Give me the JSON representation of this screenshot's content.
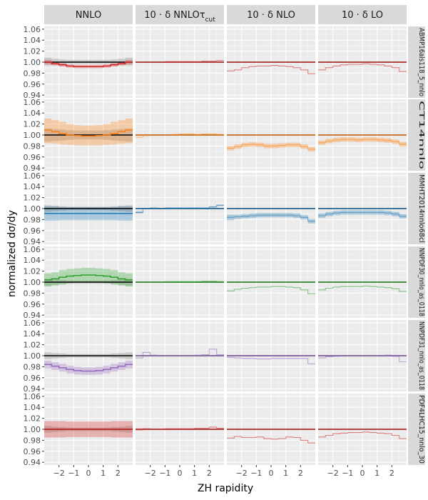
{
  "chart_data": {
    "type": "line",
    "xlabel": "ZH rapidity",
    "ylabel": "normalized dσ/dy",
    "xlim": [
      -3.0,
      3.0
    ],
    "ylim": [
      0.935,
      1.065
    ],
    "xticks": [
      -2,
      -1,
      0,
      1,
      2
    ],
    "xtick_labels": [
      "−2",
      "−1",
      "0",
      "1",
      "2"
    ],
    "yticks": [
      0.94,
      0.96,
      0.98,
      1.0,
      1.02,
      1.04,
      1.06
    ],
    "ytick_labels": [
      "0.94",
      "0.96",
      "0.98",
      "1.00",
      "1.02",
      "1.04",
      "1.06"
    ],
    "grid": true,
    "reference_line": 1.0,
    "columns": [
      {
        "id": "nnlo",
        "label_text": "NNLO",
        "label_sub": ""
      },
      {
        "id": "dnnlo",
        "label_text": "10 · δ NNLOτ",
        "label_sub": "cut"
      },
      {
        "id": "dnlo",
        "label_text": "10 · δ NLO",
        "label_sub": ""
      },
      {
        "id": "dlo",
        "label_text": "10 · δ LO",
        "label_sub": ""
      }
    ],
    "x_bins": [
      -2.75,
      -2.25,
      -1.75,
      -1.25,
      -0.75,
      -0.25,
      0.25,
      0.75,
      1.25,
      1.75,
      2.25,
      2.75
    ],
    "rows": [
      {
        "label": "ABMP16als118_5_nnlo",
        "color": "#d62728",
        "nnlo": {
          "central": [
            1.0,
            0.997,
            0.995,
            0.993,
            0.992,
            0.992,
            0.992,
            0.992,
            0.993,
            0.995,
            0.997,
            1.0
          ],
          "band_low": [
            0.996,
            0.994,
            0.992,
            0.99,
            0.989,
            0.989,
            0.989,
            0.989,
            0.99,
            0.992,
            0.994,
            0.996
          ],
          "band_high": [
            1.004,
            1.001,
            0.998,
            0.996,
            0.995,
            0.995,
            0.995,
            0.995,
            0.996,
            0.998,
            1.001,
            1.004
          ],
          "scale_low": [
            0.994,
            0.995,
            0.996,
            0.997,
            0.997,
            0.997,
            0.997,
            0.997,
            0.997,
            0.996,
            0.995,
            0.994
          ],
          "scale_high": [
            1.008,
            1.006,
            1.005,
            1.004,
            1.004,
            1.004,
            1.004,
            1.004,
            1.004,
            1.005,
            1.006,
            1.008
          ]
        },
        "dnnlo": {
          "central": [
            1.0,
            1.0,
            1.0,
            1.0,
            1.001,
            1.001,
            1.001,
            1.001,
            1.001,
            1.002,
            1.002,
            1.003
          ]
        },
        "dnlo": {
          "central": [
            0.984,
            0.986,
            0.99,
            0.992,
            0.993,
            0.993,
            0.994,
            0.993,
            0.992,
            0.99,
            0.986,
            0.979
          ]
        },
        "dlo": {
          "central": [
            0.986,
            0.99,
            0.993,
            0.995,
            0.996,
            0.996,
            0.997,
            0.996,
            0.995,
            0.993,
            0.99,
            0.983
          ]
        }
      },
      {
        "label": "CT14nnlo",
        "color": "#ff7f0e",
        "nnlo": {
          "central": [
            1.009,
            1.006,
            1.003,
            1.0,
            0.999,
            0.998,
            0.998,
            0.999,
            1.0,
            1.003,
            1.006,
            1.009
          ],
          "band_low": [
            0.985,
            0.984,
            0.983,
            0.982,
            0.981,
            0.981,
            0.981,
            0.981,
            0.982,
            0.983,
            0.984,
            0.985
          ],
          "band_high": [
            1.03,
            1.027,
            1.024,
            1.02,
            1.018,
            1.017,
            1.017,
            1.018,
            1.02,
            1.024,
            1.027,
            1.03
          ],
          "scale_low": [
            0.988,
            0.989,
            0.99,
            0.991,
            0.992,
            0.992,
            0.992,
            0.992,
            0.991,
            0.99,
            0.989,
            0.988
          ],
          "scale_high": [
            1.012,
            1.011,
            1.01,
            1.009,
            1.008,
            1.008,
            1.008,
            1.008,
            1.009,
            1.01,
            1.011,
            1.012
          ]
        },
        "dnnlo": {
          "central": [
            0.996,
            0.999,
            1.0,
            1.0,
            1.0,
            1.001,
            1.002,
            1.002,
            1.001,
            1.002,
            1.002,
            1.001
          ]
        },
        "dnlo": {
          "central": [
            0.976,
            0.979,
            0.982,
            0.983,
            0.982,
            0.98,
            0.98,
            0.981,
            0.982,
            0.982,
            0.979,
            0.974
          ],
          "band_low": [
            0.972,
            0.975,
            0.978,
            0.979,
            0.978,
            0.976,
            0.976,
            0.977,
            0.978,
            0.978,
            0.975,
            0.97
          ],
          "band_high": [
            0.98,
            0.983,
            0.986,
            0.987,
            0.986,
            0.984,
            0.984,
            0.985,
            0.986,
            0.986,
            0.983,
            0.978
          ]
        },
        "dlo": {
          "central": [
            0.986,
            0.989,
            0.991,
            0.992,
            0.992,
            0.991,
            0.992,
            0.992,
            0.991,
            0.99,
            0.988,
            0.983
          ],
          "band_low": [
            0.982,
            0.985,
            0.987,
            0.988,
            0.988,
            0.987,
            0.988,
            0.988,
            0.987,
            0.986,
            0.984,
            0.979
          ],
          "band_high": [
            0.99,
            0.993,
            0.995,
            0.996,
            0.996,
            0.995,
            0.996,
            0.996,
            0.995,
            0.994,
            0.992,
            0.987
          ]
        }
      },
      {
        "label": "MMHT2014nnlo68cl",
        "color": "#1f77b4",
        "nnlo": {
          "central": [
            0.991,
            0.991,
            0.991,
            0.991,
            0.991,
            0.991,
            0.991,
            0.991,
            0.991,
            0.991,
            0.991,
            0.991
          ],
          "band_low": [
            0.978,
            0.978,
            0.979,
            0.979,
            0.979,
            0.979,
            0.979,
            0.979,
            0.979,
            0.979,
            0.978,
            0.978
          ],
          "band_high": [
            1.004,
            1.004,
            1.003,
            1.003,
            1.003,
            1.003,
            1.003,
            1.003,
            1.003,
            1.003,
            1.004,
            1.004
          ],
          "scale_low": [
            0.994,
            0.995,
            0.996,
            0.997,
            0.997,
            0.997,
            0.997,
            0.997,
            0.997,
            0.996,
            0.995,
            0.994
          ],
          "scale_high": [
            1.006,
            1.005,
            1.004,
            1.003,
            1.003,
            1.003,
            1.003,
            1.003,
            1.003,
            1.004,
            1.005,
            1.006
          ]
        },
        "dnnlo": {
          "central": [
            0.993,
            1.0,
            1.001,
            1.0,
            1.001,
            1.001,
            1.001,
            1.001,
            1.001,
            1.001,
            1.003,
            1.006
          ],
          "band_low": [
            0.991,
            0.999,
            1.0,
            0.999,
            1.0,
            1.0,
            1.0,
            1.0,
            1.0,
            1.0,
            1.002,
            1.005
          ],
          "band_high": [
            0.995,
            1.001,
            1.002,
            1.001,
            1.002,
            1.002,
            1.002,
            1.002,
            1.002,
            1.002,
            1.004,
            1.007
          ]
        },
        "dnlo": {
          "central": [
            0.984,
            0.985,
            0.986,
            0.987,
            0.988,
            0.988,
            0.988,
            0.988,
            0.988,
            0.987,
            0.984,
            0.977
          ],
          "band_low": [
            0.979,
            0.981,
            0.982,
            0.983,
            0.984,
            0.984,
            0.984,
            0.984,
            0.984,
            0.983,
            0.98,
            0.973
          ],
          "band_high": [
            0.989,
            0.989,
            0.99,
            0.991,
            0.992,
            0.992,
            0.992,
            0.992,
            0.992,
            0.991,
            0.988,
            0.981
          ]
        },
        "dlo": {
          "central": [
            0.987,
            0.99,
            0.992,
            0.993,
            0.993,
            0.993,
            0.993,
            0.993,
            0.993,
            0.992,
            0.99,
            0.986
          ],
          "band_low": [
            0.983,
            0.986,
            0.988,
            0.989,
            0.989,
            0.989,
            0.989,
            0.989,
            0.989,
            0.988,
            0.986,
            0.982
          ],
          "band_high": [
            0.991,
            0.994,
            0.996,
            0.997,
            0.997,
            0.997,
            0.997,
            0.997,
            0.997,
            0.996,
            0.994,
            0.99
          ]
        }
      },
      {
        "label": "NNPDF30_nnlo_as_0118",
        "color": "#2ca02c",
        "nnlo": {
          "central": [
            1.004,
            1.006,
            1.009,
            1.011,
            1.012,
            1.013,
            1.013,
            1.012,
            1.011,
            1.009,
            1.006,
            1.004
          ],
          "band_low": [
            0.992,
            0.994,
            0.996,
            0.998,
            0.999,
            1.0,
            1.0,
            0.999,
            0.998,
            0.996,
            0.994,
            0.992
          ],
          "band_high": [
            1.016,
            1.018,
            1.022,
            1.024,
            1.025,
            1.026,
            1.026,
            1.025,
            1.024,
            1.022,
            1.018,
            1.016
          ],
          "scale_low": [
            0.994,
            0.995,
            0.996,
            0.997,
            0.997,
            0.997,
            0.997,
            0.997,
            0.997,
            0.996,
            0.995,
            0.994
          ],
          "scale_high": [
            1.006,
            1.005,
            1.004,
            1.003,
            1.003,
            1.003,
            1.003,
            1.003,
            1.003,
            1.004,
            1.005,
            1.006
          ]
        },
        "dnnlo": {
          "central": [
            1.0,
            1.0,
            1.0,
            1.0,
            1.001,
            1.001,
            1.001,
            1.001,
            1.001,
            1.002,
            1.002,
            1.001
          ]
        },
        "dnlo": {
          "central": [
            0.984,
            0.987,
            0.989,
            0.99,
            0.991,
            0.991,
            0.992,
            0.992,
            0.991,
            0.99,
            0.986,
            0.979
          ]
        },
        "dlo": {
          "central": [
            0.986,
            0.989,
            0.991,
            0.992,
            0.992,
            0.992,
            0.993,
            0.992,
            0.991,
            0.99,
            0.988,
            0.983
          ]
        }
      },
      {
        "label": "NNPDF31_nnlo_as_0118",
        "color": "#9467bd",
        "nnlo": {
          "central": [
            0.984,
            0.981,
            0.978,
            0.975,
            0.973,
            0.972,
            0.972,
            0.973,
            0.975,
            0.978,
            0.981,
            0.984
          ],
          "band_low": [
            0.977,
            0.974,
            0.971,
            0.968,
            0.966,
            0.965,
            0.965,
            0.966,
            0.968,
            0.971,
            0.974,
            0.977
          ],
          "band_high": [
            0.991,
            0.988,
            0.985,
            0.982,
            0.98,
            0.979,
            0.979,
            0.98,
            0.982,
            0.985,
            0.988,
            0.991
          ],
          "scale_low": [
            0.994,
            0.995,
            0.996,
            0.997,
            0.997,
            0.997,
            0.997,
            0.997,
            0.997,
            0.996,
            0.995,
            0.994
          ],
          "scale_high": [
            1.006,
            1.005,
            1.004,
            1.003,
            1.003,
            1.003,
            1.003,
            1.003,
            1.003,
            1.004,
            1.005,
            1.006
          ]
        },
        "dnnlo": {
          "central": [
            0.996,
            1.006,
            1.001,
            1.0,
            1.0,
            1.0,
            1.0,
            1.0,
            1.001,
            1.002,
            1.012,
            1.002
          ]
        },
        "dnlo": {
          "central": [
            0.997,
            0.996,
            0.995,
            0.995,
            0.994,
            0.994,
            0.995,
            0.995,
            0.995,
            0.995,
            0.995,
            0.985
          ]
        },
        "dlo": {
          "central": [
            0.996,
            0.998,
            0.999,
            1.0,
            1.0,
            1.0,
            1.0,
            1.0,
            1.0,
            1.001,
            0.999,
            0.989
          ]
        }
      },
      {
        "label": "PDF4LHC15_nnlo_30",
        "color": "#d62728",
        "nnlo": {
          "central": [
            1.0,
            1.0,
            1.0,
            1.0,
            1.0,
            1.0,
            1.0,
            1.0,
            1.0,
            1.0,
            1.0,
            1.0
          ],
          "band_low": [
            0.985,
            0.985,
            0.985,
            0.986,
            0.986,
            0.986,
            0.986,
            0.986,
            0.986,
            0.985,
            0.985,
            0.985
          ],
          "band_high": [
            1.015,
            1.015,
            1.015,
            1.014,
            1.014,
            1.014,
            1.014,
            1.014,
            1.014,
            1.015,
            1.015,
            1.015
          ],
          "scale_low": [
            0.994,
            0.995,
            0.996,
            0.997,
            0.997,
            0.997,
            0.997,
            0.997,
            0.997,
            0.996,
            0.995,
            0.994
          ],
          "scale_high": [
            1.006,
            1.005,
            1.004,
            1.003,
            1.003,
            1.003,
            1.003,
            1.003,
            1.003,
            1.004,
            1.005,
            1.006
          ]
        },
        "dnnlo": {
          "central": [
            0.999,
            1.001,
            1.0,
            1.0,
            1.001,
            1.001,
            1.001,
            1.001,
            1.002,
            1.002,
            1.004,
            1.002
          ]
        },
        "dnlo": {
          "central": [
            0.984,
            0.987,
            0.985,
            0.985,
            0.986,
            0.983,
            0.982,
            0.983,
            0.986,
            0.985,
            0.98,
            0.975
          ]
        },
        "dlo": {
          "central": [
            0.986,
            0.989,
            0.992,
            0.993,
            0.994,
            0.994,
            0.995,
            0.994,
            0.993,
            0.992,
            0.989,
            0.983
          ]
        }
      }
    ]
  }
}
